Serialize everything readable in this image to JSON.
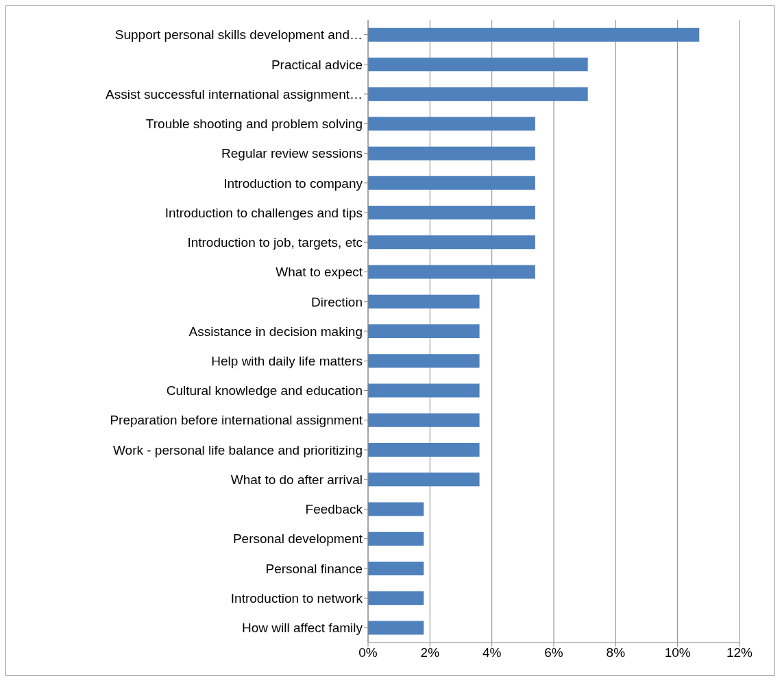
{
  "chart_data": {
    "type": "bar",
    "orientation": "horizontal",
    "categories": [
      "Support personal skills development and…",
      "Practical advice",
      "Assist successful international assignment…",
      "Trouble shooting and problem solving",
      "Regular review sessions",
      "Introduction to company",
      "Introduction to challenges and tips",
      "Introduction to job, targets, etc",
      "What to expect",
      "Direction",
      "Assistance in decision making",
      "Help with daily life matters",
      "Cultural knowledge and education",
      "Preparation before international assignment",
      "Work - personal life balance and prioritizing",
      "What to do after arrival",
      "Feedback",
      "Personal development",
      "Personal finance",
      "Introduction to network",
      "How will affect family"
    ],
    "values": [
      10.7,
      7.1,
      7.1,
      5.4,
      5.4,
      5.4,
      5.4,
      5.4,
      5.4,
      3.6,
      3.6,
      3.6,
      3.6,
      3.6,
      3.6,
      3.6,
      1.8,
      1.8,
      1.8,
      1.8,
      1.8
    ],
    "color": "#4f81bd",
    "xlim": [
      0,
      12
    ],
    "xticks": [
      {
        "value": 0,
        "label": "0%"
      },
      {
        "value": 2,
        "label": "2%"
      },
      {
        "value": 4,
        "label": "4%"
      },
      {
        "value": 6,
        "label": "6%"
      },
      {
        "value": 8,
        "label": "8%"
      },
      {
        "value": 10,
        "label": "10%"
      },
      {
        "value": 12,
        "label": "12%"
      }
    ],
    "grid": "x"
  }
}
